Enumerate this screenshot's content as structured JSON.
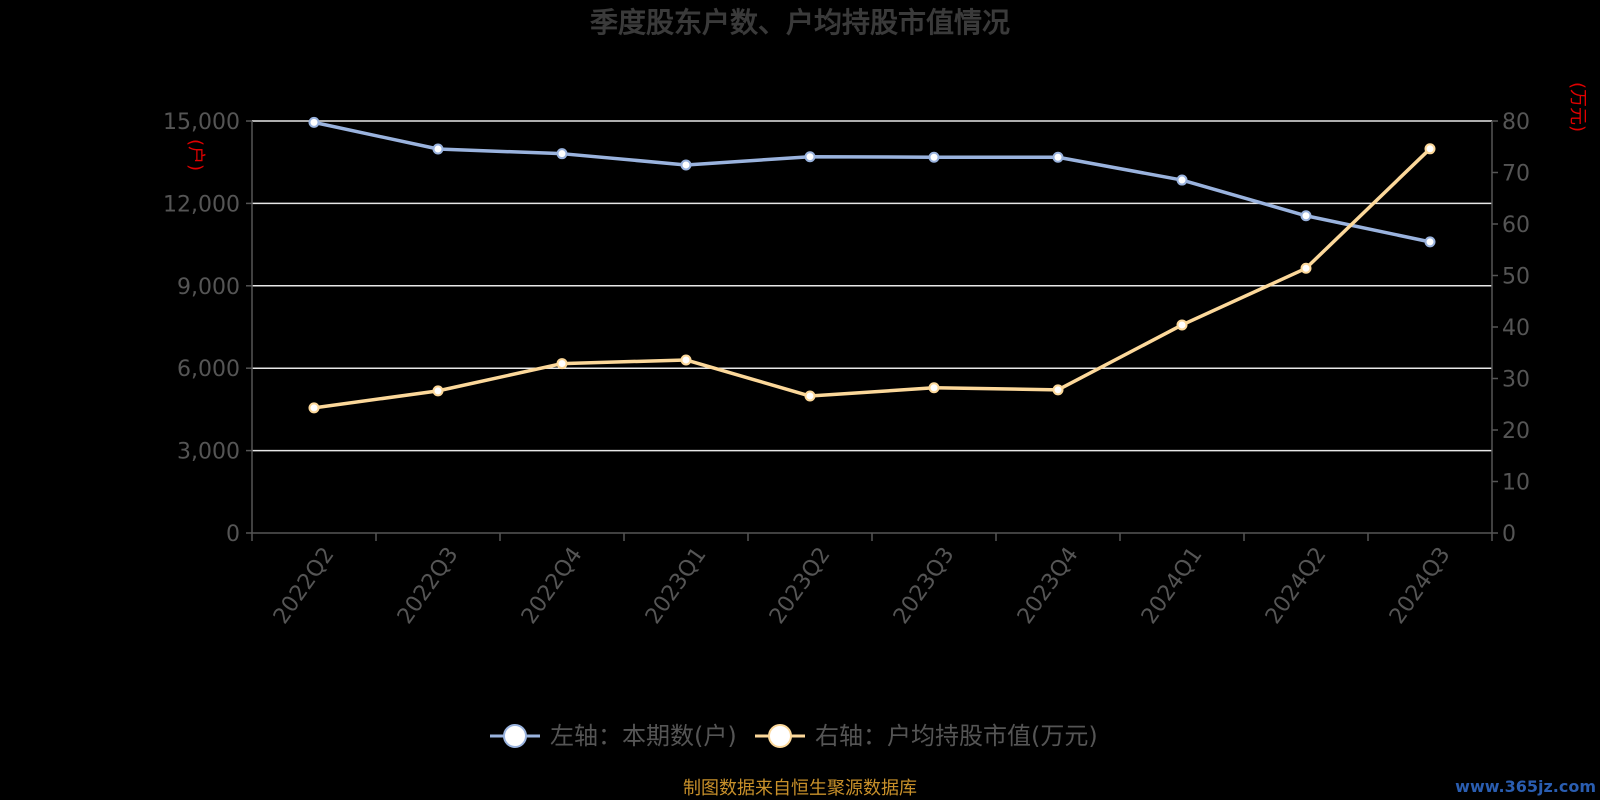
{
  "chart_data": {
    "type": "line",
    "title": "季度股东户数、户均持股市值情况",
    "categories": [
      "2022Q2",
      "2022Q3",
      "2022Q4",
      "2023Q1",
      "2023Q2",
      "2023Q3",
      "2023Q4",
      "2024Q1",
      "2024Q2",
      "2024Q3"
    ],
    "y_left": {
      "unit": "(户)",
      "ylim": [
        0,
        15000
      ],
      "ticks": [
        0,
        3000,
        6000,
        9000,
        12000,
        15000
      ],
      "tick_labels": [
        "0",
        "3,000",
        "6,000",
        "9,000",
        "12,000",
        "15,000"
      ]
    },
    "y_right": {
      "unit": "(万元)",
      "ylim": [
        0,
        80
      ],
      "ticks": [
        0,
        10,
        20,
        30,
        40,
        50,
        60,
        70,
        80
      ],
      "tick_labels": [
        "0",
        "10",
        "20",
        "30",
        "40",
        "50",
        "60",
        "70",
        "80"
      ]
    },
    "grid": true,
    "legend_position": "bottom-center",
    "series": [
      {
        "name": "左轴：本期数(户)",
        "axis": "left",
        "color": "#9ab3de",
        "values": [
          14950,
          13980,
          13810,
          13400,
          13700,
          13680,
          13680,
          12850,
          11550,
          10600
        ]
      },
      {
        "name": "右轴：户均持股市值(万元)",
        "axis": "right",
        "color": "#fcd89a",
        "values": [
          24.3,
          27.6,
          32.9,
          33.6,
          26.6,
          28.2,
          27.8,
          40.4,
          51.4,
          74.6
        ]
      }
    ]
  },
  "footer": {
    "source": "制图数据来自恒生聚源数据库",
    "watermark": "www.365jz.com"
  }
}
